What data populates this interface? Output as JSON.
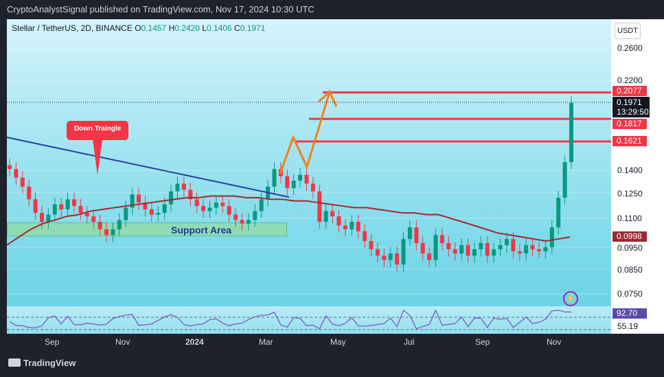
{
  "header": {
    "title": "CryptoAnalystSignal published on TradingView.com, Nov 17, 2024 10:30 UTC"
  },
  "symbol": {
    "name": "Stellar / TetherUS, 2D, BINANCE",
    "o_label": "O",
    "o": "0.1457",
    "h_label": "H",
    "h": "0.2420",
    "l_label": "L",
    "l": "0.1406",
    "c_label": "C",
    "c": "0.1971"
  },
  "currency": "USDT",
  "y_axis": {
    "ticks": [
      "0.2600",
      "0.2200",
      "0.1400",
      "0.1250",
      "0.1100",
      "0.0950",
      "0.0850",
      "0.0750"
    ]
  },
  "price_tags": {
    "level1": "0.2077",
    "current": "0.1971",
    "countdown": "13:29:50",
    "level2": "0.1817",
    "level3": "0.1621",
    "ma": "0.0998"
  },
  "rsi": {
    "value": "92.70",
    "ma": "55.19"
  },
  "x_axis": {
    "ticks": [
      "Sep",
      "Nov",
      "2024",
      "Mar",
      "May",
      "Jul",
      "Sep",
      "Nov"
    ]
  },
  "annotations": {
    "callout": "Down Traingle",
    "support": "Support Area"
  },
  "footer": {
    "brand": "TradingView"
  },
  "chart_data": {
    "type": "candlestick",
    "title": "Stellar / TetherUS, 2D, BINANCE",
    "ylim": [
      0.07,
      0.27
    ],
    "scale": "log",
    "x_ticks": [
      "Sep",
      "Nov",
      "2024",
      "Mar",
      "May",
      "Jul",
      "Sep",
      "Nov"
    ],
    "resistance_levels": [
      0.2077,
      0.1817,
      0.1621
    ],
    "last_close": 0.1971,
    "moving_average_last": 0.0998,
    "closes": [
      0.141,
      0.135,
      0.129,
      0.121,
      0.113,
      0.108,
      0.112,
      0.118,
      0.115,
      0.121,
      0.117,
      0.113,
      0.111,
      0.108,
      0.104,
      0.101,
      0.104,
      0.109,
      0.116,
      0.124,
      0.119,
      0.115,
      0.112,
      0.113,
      0.118,
      0.126,
      0.131,
      0.127,
      0.121,
      0.117,
      0.114,
      0.116,
      0.119,
      0.117,
      0.112,
      0.109,
      0.107,
      0.109,
      0.114,
      0.121,
      0.129,
      0.141,
      0.136,
      0.128,
      0.133,
      0.137,
      0.131,
      0.126,
      0.108,
      0.114,
      0.111,
      0.106,
      0.104,
      0.108,
      0.103,
      0.098,
      0.094,
      0.091,
      0.089,
      0.092,
      0.087,
      0.099,
      0.105,
      0.097,
      0.092,
      0.089,
      0.101,
      0.097,
      0.094,
      0.092,
      0.096,
      0.091,
      0.094,
      0.097,
      0.091,
      0.094,
      0.096,
      0.099,
      0.093,
      0.092,
      0.096,
      0.094,
      0.093,
      0.095,
      0.105,
      0.122,
      0.146,
      0.197
    ],
    "moving_average": [
      0.096,
      0.1,
      0.104,
      0.107,
      0.109,
      0.111,
      0.112,
      0.114,
      0.115,
      0.116,
      0.117,
      0.118,
      0.119,
      0.12,
      0.121,
      0.122,
      0.122,
      0.123,
      0.123,
      0.123,
      0.122,
      0.122,
      0.121,
      0.121,
      0.12,
      0.12,
      0.119,
      0.118,
      0.117,
      0.116,
      0.116,
      0.115,
      0.114,
      0.113,
      0.113,
      0.112,
      0.112,
      0.11,
      0.108,
      0.106,
      0.104,
      0.102,
      0.101,
      0.1,
      0.099,
      0.098,
      0.099,
      0.1
    ]
  }
}
